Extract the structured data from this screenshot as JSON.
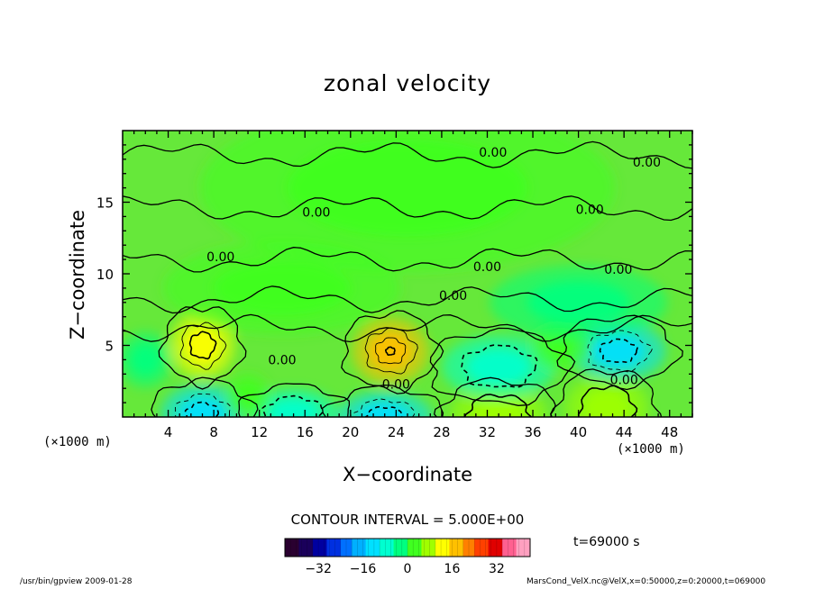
{
  "chart_data": {
    "type": "heatmap",
    "title": "zonal velocity",
    "xlabel": "X−coordinate",
    "ylabel": "Z−coordinate",
    "x_unit_left": "(×1000 m)",
    "x_unit_right": "(×1000 m)",
    "xlim": [
      0,
      50
    ],
    "ylim": [
      0,
      20
    ],
    "x_ticks": [
      4,
      8,
      12,
      16,
      20,
      24,
      28,
      32,
      36,
      40,
      44,
      48
    ],
    "y_ticks": [
      5,
      10,
      15
    ],
    "contour_interval_text": "CONTOUR INTERVAL = 5.000E+00",
    "contour_label": "0.00",
    "contour_labels": [
      {
        "x": 32.5,
        "z": 18.5,
        "text": "0.00"
      },
      {
        "x": 46.0,
        "z": 17.8,
        "text": "0.00"
      },
      {
        "x": 17.0,
        "z": 14.3,
        "text": "0.00"
      },
      {
        "x": 41.0,
        "z": 14.5,
        "text": "0.00"
      },
      {
        "x": 8.6,
        "z": 11.2,
        "text": "0.00"
      },
      {
        "x": 32.0,
        "z": 10.5,
        "text": "0.00"
      },
      {
        "x": 43.5,
        "z": 10.3,
        "text": "0.00"
      },
      {
        "x": 29.0,
        "z": 8.5,
        "text": "0.00"
      },
      {
        "x": 14.0,
        "z": 4.0,
        "text": "0.00"
      },
      {
        "x": 24.0,
        "z": 2.3,
        "text": "0.00"
      },
      {
        "x": 44.0,
        "z": 2.6,
        "text": "0.00"
      }
    ],
    "anomalies": [
      {
        "x": 7.0,
        "z": 5.0,
        "sx": 2.2,
        "sz": 1.8,
        "value": 14
      },
      {
        "x": 23.5,
        "z": 4.6,
        "sx": 2.6,
        "sz": 1.8,
        "value": 15
      },
      {
        "x": 7.0,
        "z": 0.2,
        "sx": 2.8,
        "sz": 1.6,
        "value": -13
      },
      {
        "x": 15.0,
        "z": 0.3,
        "sx": 3.0,
        "sz": 1.3,
        "value": -5
      },
      {
        "x": 23.0,
        "z": 0.0,
        "sx": 3.2,
        "sz": 1.4,
        "value": -12
      },
      {
        "x": 33.0,
        "z": 0.2,
        "sx": 3.2,
        "sz": 1.6,
        "value": 7
      },
      {
        "x": 42.5,
        "z": 0.6,
        "sx": 2.8,
        "sz": 1.8,
        "value": 9
      },
      {
        "x": 43.5,
        "z": 4.6,
        "sx": 3.2,
        "sz": 1.6,
        "value": -13
      },
      {
        "x": 33.0,
        "z": 3.5,
        "sx": 3.8,
        "sz": 1.7,
        "value": -6
      },
      {
        "x": 38.5,
        "z": 5.0,
        "sx": 2.0,
        "sz": 1.4,
        "value": 3
      },
      {
        "x": 2.0,
        "z": 4.0,
        "sx": 1.8,
        "sz": 1.5,
        "value": -4
      },
      {
        "x": 11.0,
        "z": 1.5,
        "sx": 1.5,
        "sz": 1.2,
        "value": 3
      },
      {
        "x": 25.0,
        "z": 16.0,
        "sx": 14.0,
        "sz": 4.5,
        "value": 1.5
      },
      {
        "x": 14.0,
        "z": 9.0,
        "sx": 8.0,
        "sz": 2.5,
        "value": 2.5
      },
      {
        "x": 40.0,
        "z": 8.0,
        "sx": 6.0,
        "sz": 2.0,
        "value": -2
      }
    ],
    "colorbar": {
      "ticks": [
        -32,
        -16,
        0,
        16,
        32
      ],
      "range": [
        -44,
        44
      ],
      "colors": [
        "#2a0030",
        "#1a005a",
        "#0000a0",
        "#0030e0",
        "#0070ff",
        "#00b0ff",
        "#00e0ff",
        "#00ffd0",
        "#00ff80",
        "#40ff20",
        "#a0ff00",
        "#ffff00",
        "#ffc000",
        "#ff8000",
        "#ff4000",
        "#e00000",
        "#ff6090",
        "#ffa0c0"
      ]
    },
    "time_label": "t=69000 s",
    "grid": false,
    "legend_position": "bottom"
  },
  "footer": {
    "left": "/usr/bin/gpview   2009-01-28",
    "right": "MarsCond_VelX.nc@VelX,x=0:50000,z=0:20000,t=069000"
  }
}
